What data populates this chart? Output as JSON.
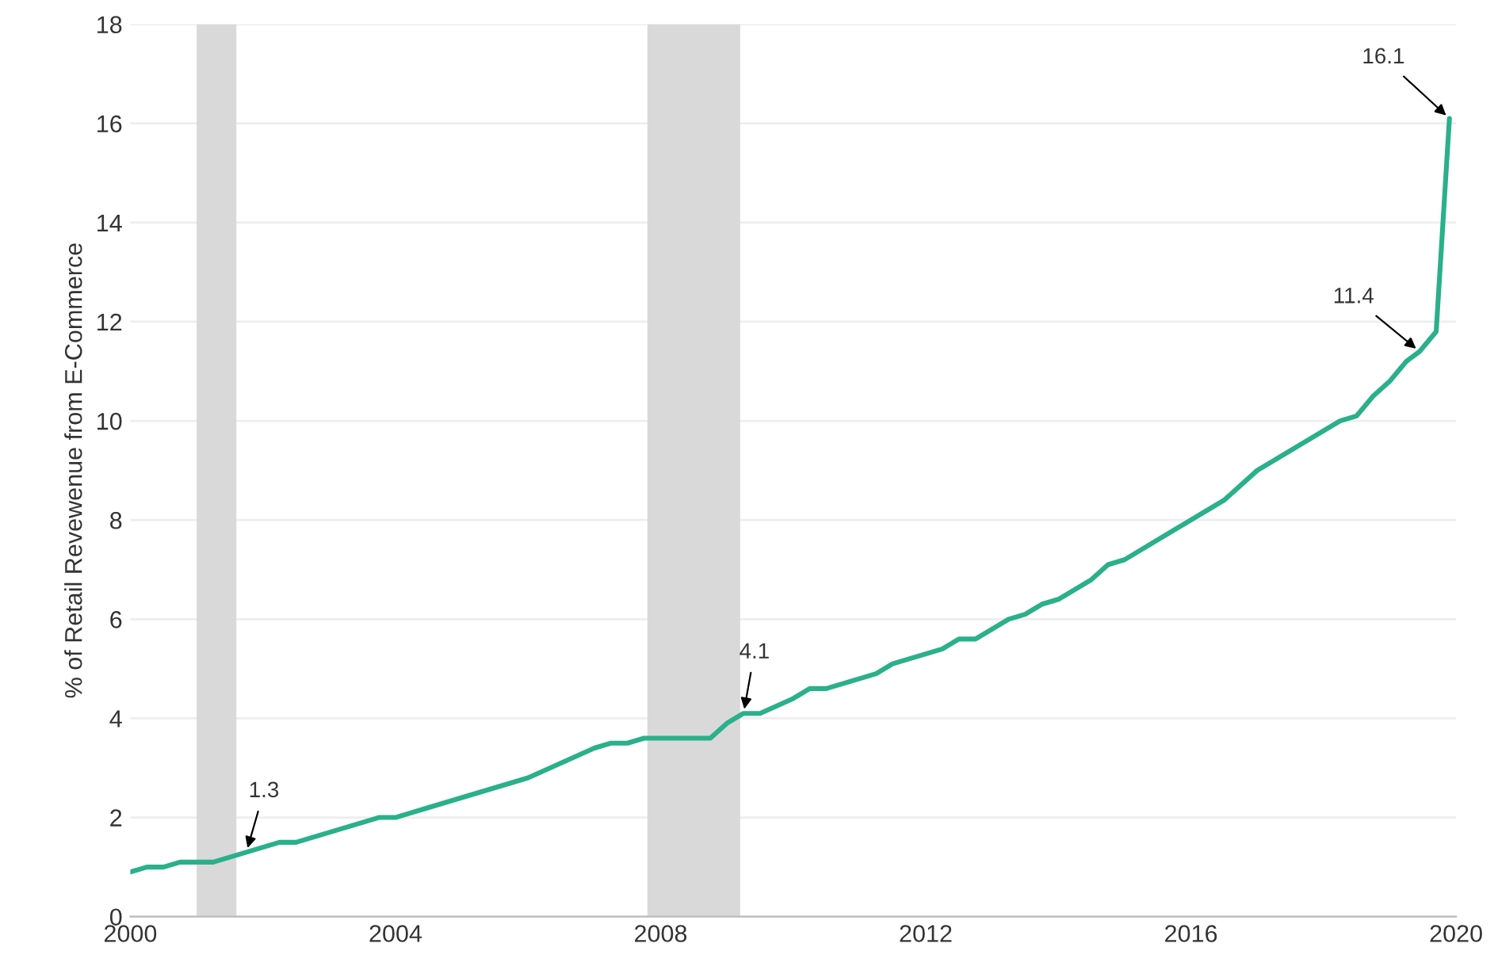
{
  "chart_data": {
    "type": "line",
    "ylabel": "% of Retail Revewenue from E-Commerce",
    "x": [
      2000.0,
      2000.25,
      2000.5,
      2000.75,
      2001.0,
      2001.25,
      2001.5,
      2001.75,
      2002.0,
      2002.25,
      2002.5,
      2003.0,
      2003.5,
      2003.75,
      2004.0,
      2004.5,
      2005.0,
      2005.5,
      2006.0,
      2006.5,
      2007.0,
      2007.25,
      2007.5,
      2007.75,
      2008.0,
      2008.5,
      2008.75,
      2009.0,
      2009.25,
      2009.5,
      2010.0,
      2010.25,
      2010.5,
      2011.0,
      2011.25,
      2011.5,
      2012.0,
      2012.25,
      2012.5,
      2012.75,
      2013.25,
      2013.5,
      2013.75,
      2014.0,
      2014.5,
      2014.75,
      2015.0,
      2015.5,
      2016.0,
      2016.5,
      2017.0,
      2017.5,
      2018.0,
      2018.25,
      2018.5,
      2018.75,
      2019.0,
      2019.25,
      2019.45,
      2019.7,
      2019.9
    ],
    "series": [
      {
        "color": "#2ab08a",
        "values": [
          0.9,
          1.0,
          1.0,
          1.1,
          1.1,
          1.1,
          1.2,
          1.3,
          1.4,
          1.5,
          1.5,
          1.7,
          1.9,
          2.0,
          2.0,
          2.2,
          2.4,
          2.6,
          2.8,
          3.1,
          3.4,
          3.5,
          3.5,
          3.6,
          3.6,
          3.6,
          3.6,
          3.9,
          4.1,
          4.1,
          4.4,
          4.6,
          4.6,
          4.8,
          4.9,
          5.1,
          5.3,
          5.4,
          5.6,
          5.6,
          6.0,
          6.1,
          6.3,
          6.4,
          6.8,
          7.1,
          7.2,
          7.6,
          8.0,
          8.4,
          9.0,
          9.4,
          9.8,
          10.0,
          10.1,
          10.5,
          10.8,
          11.2,
          11.4,
          11.8,
          16.1
        ]
      }
    ],
    "xlim": [
      2000,
      2020
    ],
    "xticks": [
      2000,
      2004,
      2008,
      2012,
      2016,
      2020
    ],
    "ylim": [
      0,
      18
    ],
    "yticks": [
      0,
      2,
      4,
      6,
      8,
      10,
      12,
      14,
      16,
      18
    ],
    "grid": "y",
    "marker": "none",
    "line_style": "solid",
    "bands": [
      {
        "axis": "x",
        "from": 2001.0,
        "to": 2001.6,
        "color": "#d9d9d9"
      },
      {
        "axis": "x",
        "from": 2007.8,
        "to": 2009.2,
        "color": "#d9d9d9"
      }
    ],
    "annotations": [
      {
        "text": "1.3",
        "x": 2001.75,
        "y": 1.3
      },
      {
        "text": "4.1",
        "x": 2009.25,
        "y": 4.1
      },
      {
        "text": "11.4",
        "x": 2019.45,
        "y": 11.4
      },
      {
        "text": "16.1",
        "x": 2019.9,
        "y": 16.1
      }
    ]
  }
}
